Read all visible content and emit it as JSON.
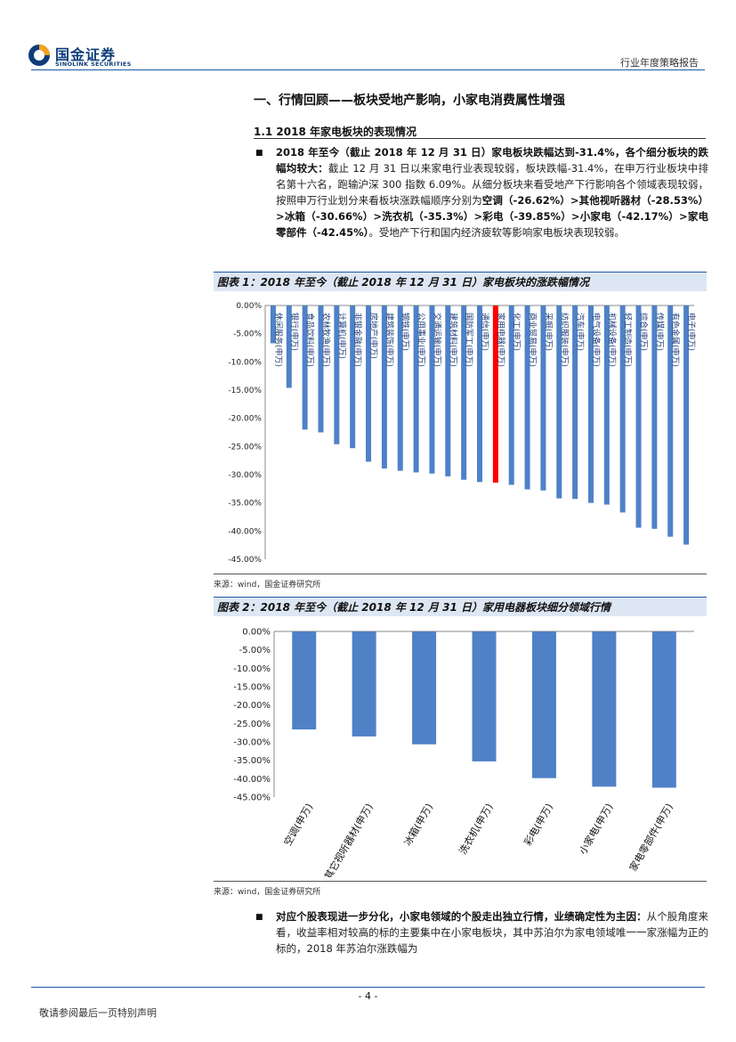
{
  "header": {
    "company_cn": "国金证券",
    "company_en": "SINOLINK SECURITIES",
    "doc_type": "行业年度策略报告"
  },
  "section": {
    "title": "一、行情回顾——板块受地产影响，小家电消费属性增强",
    "subtitle": "1.1 2018 年家电板块的表现情况"
  },
  "paragraph1": {
    "lead": "2018 年至今（截止 2018 年 12 月 31 日）家电板块跌幅达到-31.4%，各个细分板块的跌幅均较大：",
    "text1": "截止 12 月 31 日以来家电行业表现较弱，板块跌幅-31.4%，在申万行业板块中排名第十六名，跑输沪深 300 指数 6.09%。从细分板块来看受地产下行影响各个领域表现较弱，按照申万行业划分来看板块涨跌幅顺序分别为",
    "items": [
      "空调（-26.62%）",
      "其他视听器材（-28.53%）",
      "冰箱（-30.66%）",
      "洗衣机（-35.3%）",
      "彩电（-39.85%）",
      "小家电（-42.17%）",
      "家电零部件（-42.45%）"
    ],
    "sep": ">",
    "text2": "。受地产下行和国内经济疲软等影响家电板块表现较弱。"
  },
  "figure1": {
    "title": "图表 1：2018 年至今（截止 2018 年 12 月 31 日）家电板块的涨跌幅情况",
    "source": "来源：wind，国金证券研究所"
  },
  "figure2": {
    "title": "图表 2：2018 年至今（截止 2018 年 12 月 31 日）家用电器板块细分领域行情",
    "source": "来源：wind，国金证券研究所"
  },
  "paragraph2": {
    "lead": "对应个股表现进一步分化，小家电领域的个股走出独立行情，业绩确定性为主因：",
    "text": "从个股角度来看，收益率相对较高的标的主要集中在小家电板块，其中苏泊尔为家电领域唯一一家涨幅为正的标的，2018 年苏泊尔涨跌幅为"
  },
  "footer": {
    "page": "- 4 -",
    "note": "敬请参阅最后一页特别声明"
  },
  "colors": {
    "bar": "#4f81c7",
    "highlight": "#ff0000",
    "brand": "#1a5aa6"
  },
  "chart_data": [
    {
      "type": "bar",
      "title": "图表 1：2018 年至今（截止 2018 年 12 月 31 日）家电板块的涨跌幅情况",
      "categories": [
        "休闲服务(申万)",
        "银行(申万)",
        "食品饮料(申万)",
        "农林牧渔(申万)",
        "计算机(申万)",
        "非银金融(申万)",
        "房地产(申万)",
        "建筑装饰(申万)",
        "钢铁(申万)",
        "公用事业(申万)",
        "交通运输(申万)",
        "建筑材料(申万)",
        "国防军工(申万)",
        "通信(申万)",
        "家用电器(申万)",
        "化工(申万)",
        "商业贸易(申万)",
        "采掘(申万)",
        "纺织服装(申万)",
        "汽车(申万)",
        "电气设备(申万)",
        "机械设备(申万)",
        "轻工制造(申万)",
        "综合(申万)",
        "传媒(申万)",
        "有色金属(申万)",
        "电子(申万)"
      ],
      "values": [
        -6.7,
        -14.6,
        -22.0,
        -22.5,
        -24.6,
        -25.3,
        -27.7,
        -28.9,
        -29.3,
        -29.6,
        -29.8,
        -30.3,
        -30.9,
        -31.3,
        -31.4,
        -31.8,
        -32.6,
        -32.8,
        -34.2,
        -34.3,
        -35.0,
        -35.3,
        -36.7,
        -39.4,
        -39.6,
        -41.0,
        -42.4
      ],
      "highlight_index": 14,
      "yticks": [
        "0.00%",
        "-5.00%",
        "-10.00%",
        "-15.00%",
        "-20.00%",
        "-25.00%",
        "-30.00%",
        "-35.00%",
        "-40.00%",
        "-45.00%"
      ],
      "ylim": [
        -45,
        0
      ],
      "xlabel": "",
      "ylabel": ""
    },
    {
      "type": "bar",
      "title": "图表 2：2018 年至今（截止 2018 年 12 月 31 日）家用电器板块细分领域行情",
      "categories": [
        "空调(申万)",
        "其它视听器材(申万)",
        "冰箱(申万)",
        "洗衣机(申万)",
        "彩电(申万)",
        "小家电(申万)",
        "家电零部件(申万)"
      ],
      "values": [
        -26.62,
        -28.53,
        -30.66,
        -35.3,
        -39.85,
        -42.17,
        -42.45
      ],
      "yticks": [
        "0.00%",
        "-5.00%",
        "-10.00%",
        "-15.00%",
        "-20.00%",
        "-25.00%",
        "-30.00%",
        "-35.00%",
        "-40.00%",
        "-45.00%"
      ],
      "ylim": [
        -45,
        0
      ],
      "xlabel": "",
      "ylabel": ""
    }
  ]
}
